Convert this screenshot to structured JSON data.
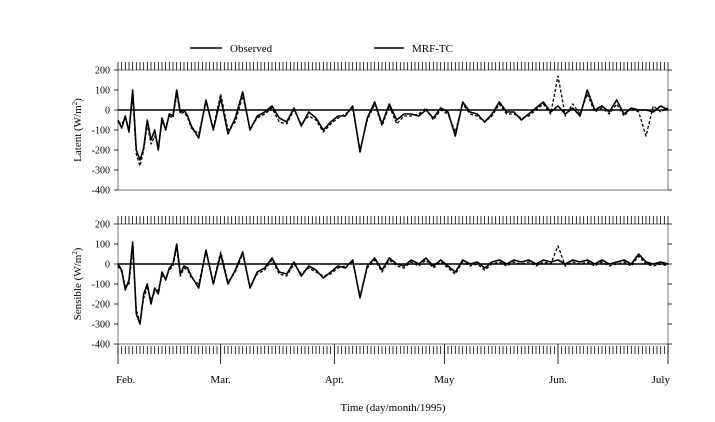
{
  "chart_data": [
    {
      "type": "line",
      "id": "latent",
      "ylabel_main": "Latent (W/m",
      "ylabel_sup": "2",
      "ylabel_tail": ")",
      "ylim": [
        -400,
        200
      ],
      "yticks": [
        200,
        100,
        0,
        -100,
        -200,
        -300,
        -400
      ],
      "xlim": [
        0,
        150
      ],
      "series": [
        {
          "name": "Observed",
          "style": "solid",
          "x": [
            0,
            1,
            2,
            3,
            4,
            5,
            6,
            7,
            8,
            9,
            10,
            11,
            12,
            13,
            14,
            15,
            16,
            17,
            18,
            19,
            20,
            22,
            24,
            26,
            28,
            30,
            32,
            34,
            36,
            38,
            40,
            42,
            44,
            46,
            48,
            50,
            52,
            54,
            56,
            58,
            60,
            62,
            64,
            66,
            68,
            70,
            72,
            74,
            76,
            78,
            80,
            82,
            84,
            86,
            88,
            90,
            92,
            94,
            96,
            98,
            100,
            102,
            104,
            106,
            108,
            110,
            112,
            114,
            116,
            118,
            120,
            122,
            124,
            126,
            128,
            130,
            132,
            134,
            136,
            138,
            140,
            142,
            144,
            146,
            148,
            150
          ],
          "y": [
            -50,
            -90,
            -30,
            -110,
            100,
            -200,
            -250,
            -190,
            -50,
            -150,
            -100,
            -200,
            -40,
            -100,
            -20,
            -30,
            100,
            -10,
            0,
            -30,
            -80,
            -140,
            50,
            -100,
            60,
            -120,
            -40,
            90,
            -100,
            -30,
            -10,
            20,
            -40,
            -60,
            10,
            -80,
            -10,
            -40,
            -100,
            -60,
            -30,
            -30,
            20,
            -210,
            -40,
            40,
            -70,
            30,
            -50,
            -20,
            -20,
            -30,
            0,
            -40,
            10,
            -10,
            -130,
            40,
            -10,
            -20,
            -60,
            -20,
            40,
            -10,
            -10,
            -50,
            -20,
            10,
            40,
            -10,
            20,
            -20,
            10,
            -30,
            100,
            0,
            20,
            -10,
            50,
            -20,
            10,
            0,
            0,
            -10,
            20,
            0
          ]
        },
        {
          "name": "MRF-TC",
          "style": "dashed",
          "x": [
            0,
            1,
            2,
            3,
            4,
            5,
            6,
            7,
            8,
            9,
            10,
            11,
            12,
            13,
            14,
            15,
            16,
            17,
            18,
            19,
            20,
            22,
            24,
            26,
            28,
            30,
            32,
            34,
            36,
            38,
            40,
            42,
            44,
            46,
            48,
            50,
            52,
            54,
            56,
            58,
            60,
            62,
            64,
            66,
            68,
            70,
            72,
            74,
            76,
            78,
            80,
            82,
            84,
            86,
            88,
            90,
            92,
            94,
            96,
            98,
            100,
            102,
            104,
            106,
            108,
            110,
            112,
            114,
            116,
            118,
            120,
            122,
            124,
            126,
            128,
            130,
            132,
            134,
            136,
            138,
            140,
            142,
            144,
            146,
            148,
            150
          ],
          "y": [
            -60,
            -70,
            -40,
            -100,
            70,
            -220,
            -280,
            -200,
            -70,
            -170,
            -130,
            -180,
            -60,
            -90,
            -30,
            -40,
            80,
            -20,
            -10,
            -40,
            -90,
            -120,
            40,
            -90,
            80,
            -100,
            -60,
            70,
            -90,
            -40,
            -20,
            10,
            -60,
            -70,
            0,
            -70,
            -30,
            -50,
            -110,
            -70,
            -40,
            -20,
            10,
            -200,
            -50,
            30,
            -80,
            20,
            -70,
            -30,
            -30,
            -20,
            10,
            -50,
            0,
            -20,
            -110,
            30,
            -20,
            -30,
            -60,
            -30,
            30,
            -20,
            -20,
            -40,
            -30,
            0,
            30,
            -20,
            170,
            -30,
            30,
            -20,
            80,
            -10,
            10,
            -20,
            30,
            -30,
            10,
            -10,
            -130,
            20,
            -10,
            10
          ]
        }
      ]
    },
    {
      "type": "line",
      "id": "sensible",
      "ylabel_main": "Sensible (W/m",
      "ylabel_sup": "2",
      "ylabel_tail": ")",
      "ylim": [
        -400,
        200
      ],
      "yticks": [
        200,
        100,
        0,
        -100,
        -200,
        -300,
        -400
      ],
      "xlim": [
        0,
        150
      ],
      "xticks": [
        {
          "x": 0,
          "label": "Feb."
        },
        {
          "x": 28,
          "label": "Mar."
        },
        {
          "x": 59,
          "label": "Apr."
        },
        {
          "x": 89,
          "label": "May"
        },
        {
          "x": 120,
          "label": "Jun."
        },
        {
          "x": 150,
          "label": "July"
        }
      ],
      "xlabel": "Time (day/month/1995)",
      "series": [
        {
          "name": "Observed",
          "style": "solid",
          "x": [
            0,
            1,
            2,
            3,
            4,
            5,
            6,
            7,
            8,
            9,
            10,
            11,
            12,
            13,
            14,
            15,
            16,
            17,
            18,
            19,
            20,
            22,
            24,
            26,
            28,
            30,
            32,
            34,
            36,
            38,
            40,
            42,
            44,
            46,
            48,
            50,
            52,
            54,
            56,
            58,
            60,
            62,
            64,
            66,
            68,
            70,
            72,
            74,
            76,
            78,
            80,
            82,
            84,
            86,
            88,
            90,
            92,
            94,
            96,
            98,
            100,
            102,
            104,
            106,
            108,
            110,
            112,
            114,
            116,
            118,
            120,
            122,
            124,
            126,
            128,
            130,
            132,
            134,
            136,
            138,
            140,
            142,
            144,
            146,
            148,
            150
          ],
          "y": [
            0,
            -30,
            -130,
            -80,
            110,
            -250,
            -300,
            -150,
            -100,
            -200,
            -120,
            -150,
            -40,
            -80,
            -20,
            0,
            100,
            -50,
            -10,
            -20,
            -60,
            -120,
            70,
            -100,
            50,
            -100,
            -30,
            60,
            -120,
            -40,
            -20,
            30,
            -40,
            -50,
            10,
            -60,
            -10,
            -30,
            -70,
            -40,
            -10,
            -20,
            20,
            -170,
            -10,
            30,
            -30,
            30,
            0,
            -10,
            20,
            0,
            30,
            -10,
            20,
            -10,
            -40,
            20,
            0,
            10,
            -20,
            10,
            20,
            0,
            20,
            10,
            20,
            0,
            20,
            10,
            20,
            0,
            20,
            10,
            20,
            0,
            20,
            0,
            10,
            20,
            0,
            50,
            10,
            0,
            10,
            0
          ]
        },
        {
          "name": "MRF-TC",
          "style": "dashed",
          "x": [
            0,
            1,
            2,
            3,
            4,
            5,
            6,
            7,
            8,
            9,
            10,
            11,
            12,
            13,
            14,
            15,
            16,
            17,
            18,
            19,
            20,
            22,
            24,
            26,
            28,
            30,
            32,
            34,
            36,
            38,
            40,
            42,
            44,
            46,
            48,
            50,
            52,
            54,
            56,
            58,
            60,
            62,
            64,
            66,
            68,
            70,
            72,
            74,
            76,
            78,
            80,
            82,
            84,
            86,
            88,
            90,
            92,
            94,
            96,
            98,
            100,
            102,
            104,
            106,
            108,
            110,
            112,
            114,
            116,
            118,
            120,
            122,
            124,
            126,
            128,
            130,
            132,
            134,
            136,
            138,
            140,
            142,
            144,
            146,
            148,
            150
          ],
          "y": [
            -10,
            -40,
            -110,
            -100,
            80,
            -230,
            -290,
            -170,
            -120,
            -180,
            -140,
            -130,
            -60,
            -70,
            -30,
            -10,
            80,
            -60,
            -20,
            -30,
            -70,
            -100,
            60,
            -90,
            60,
            -90,
            -40,
            50,
            -110,
            -50,
            -30,
            20,
            -50,
            -60,
            0,
            -50,
            -20,
            -40,
            -60,
            -50,
            -20,
            -10,
            10,
            -160,
            -20,
            20,
            -40,
            20,
            -10,
            -20,
            10,
            -10,
            20,
            -20,
            10,
            -20,
            -50,
            10,
            -10,
            0,
            -30,
            0,
            10,
            -10,
            10,
            0,
            10,
            -10,
            10,
            0,
            90,
            -10,
            10,
            0,
            10,
            -10,
            10,
            -10,
            0,
            10,
            -10,
            40,
            0,
            -10,
            0,
            -10
          ]
        }
      ]
    }
  ],
  "legend": {
    "observed_label": "Observed",
    "mrf_label": "MRF-TC"
  }
}
